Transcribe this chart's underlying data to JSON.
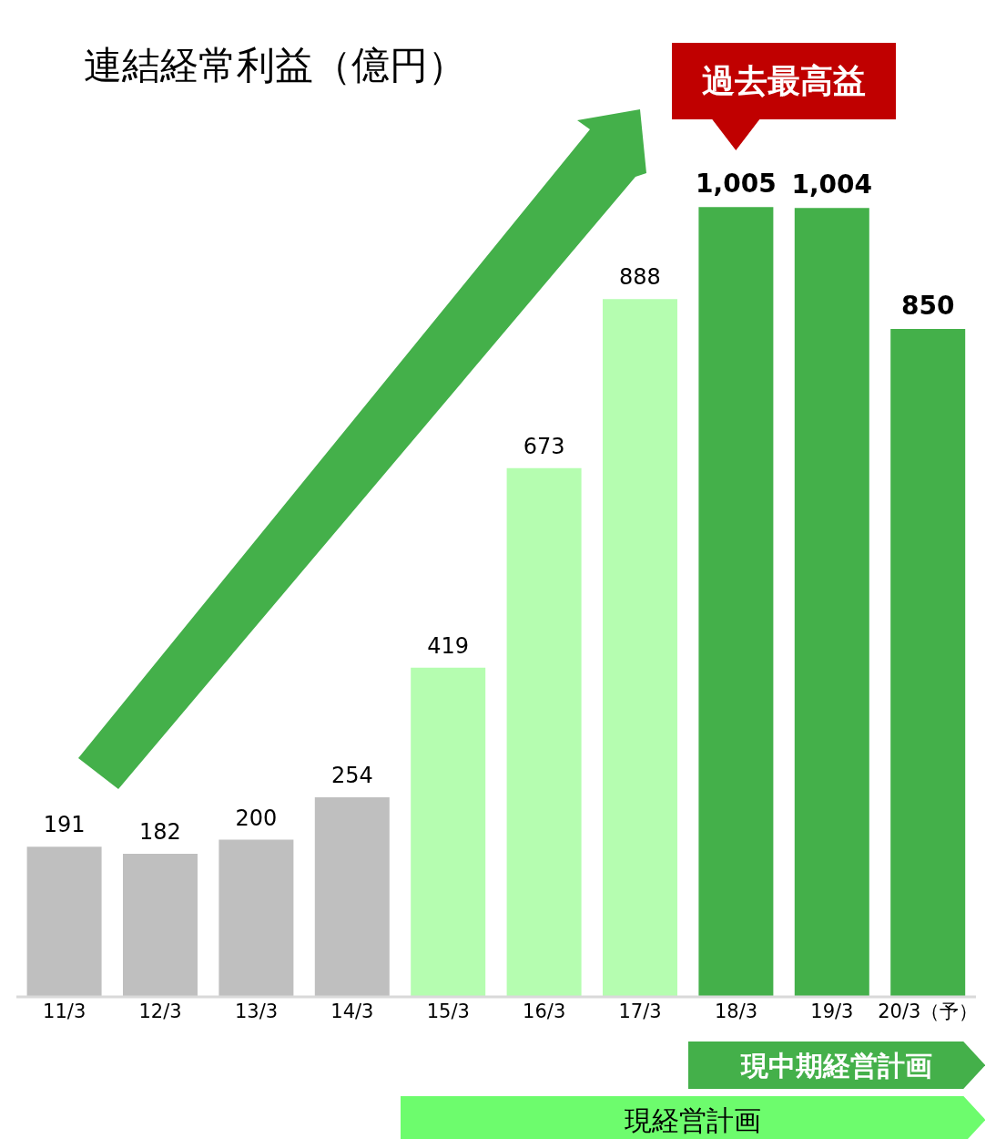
{
  "chart_data": {
    "type": "bar",
    "title": "連結経常利益（億円）",
    "categories": [
      "11/3",
      "12/3",
      "13/3",
      "14/3",
      "15/3",
      "16/3",
      "17/3",
      "18/3",
      "19/3",
      "20/3（予）"
    ],
    "values": [
      191,
      182,
      200,
      254,
      419,
      673,
      888,
      1005,
      1004,
      850
    ],
    "value_labels": [
      "191",
      "182",
      "200",
      "254",
      "419",
      "673",
      "888",
      "1,005",
      "1,004",
      "850"
    ],
    "colors": [
      "#bfbfbf",
      "#bfbfbf",
      "#bfbfbf",
      "#bfbfbf",
      "#b5fdb0",
      "#b5fdb0",
      "#b5fdb0",
      "#44b04a",
      "#44b04a",
      "#44b04a"
    ],
    "annotations": [
      "過去最高益",
      "現中期経営計画",
      "現経営計画"
    ]
  }
}
